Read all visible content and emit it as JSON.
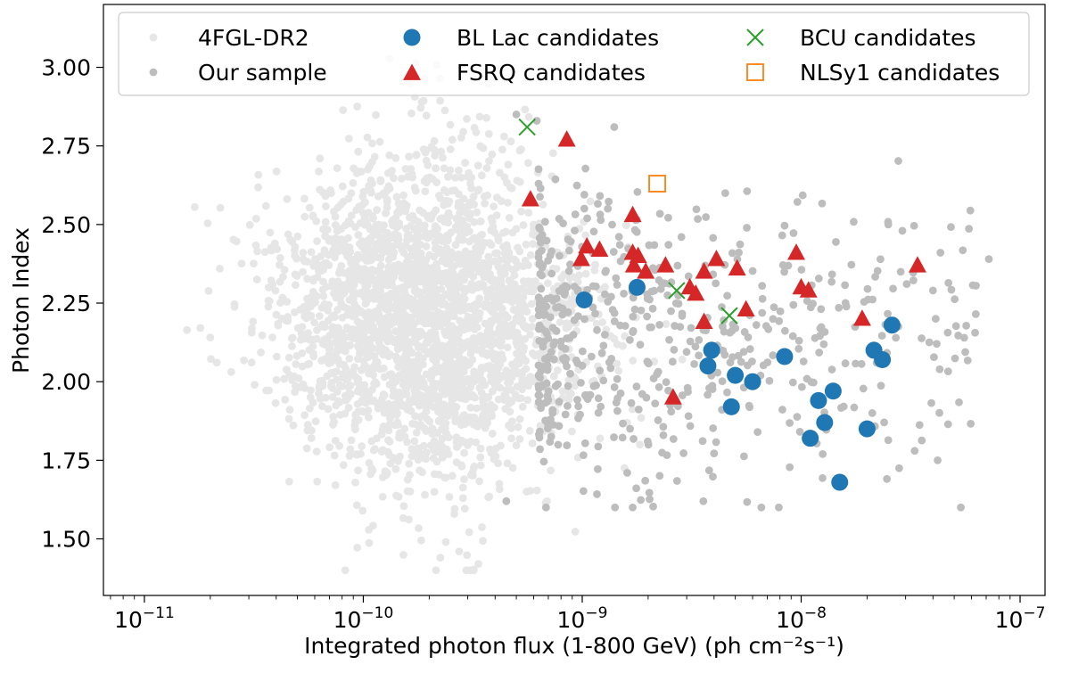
{
  "chart_data": {
    "type": "scatter",
    "xscale": "log",
    "xlabel": "Integrated photon flux (1-800 GeV) (ph cm⁻²s⁻¹)",
    "ylabel": "Photon Index",
    "xlim": [
      6.5e-12,
      1.3e-07
    ],
    "ylim": [
      1.32,
      3.2
    ],
    "x_ticks": [
      {
        "value": 1e-11,
        "base": "10",
        "exp": "−11"
      },
      {
        "value": 1e-10,
        "base": "10",
        "exp": "−10"
      },
      {
        "value": 1e-09,
        "base": "10",
        "exp": "−9"
      },
      {
        "value": 1e-08,
        "base": "10",
        "exp": "−8"
      },
      {
        "value": 1e-07,
        "base": "10",
        "exp": "−7"
      }
    ],
    "y_ticks": [
      {
        "value": 1.5,
        "label": "1.50"
      },
      {
        "value": 1.75,
        "label": "1.75"
      },
      {
        "value": 2.0,
        "label": "2.00"
      },
      {
        "value": 2.25,
        "label": "2.25"
      },
      {
        "value": 2.5,
        "label": "2.50"
      },
      {
        "value": 2.75,
        "label": "2.75"
      },
      {
        "value": 3.0,
        "label": "3.00"
      }
    ],
    "legend": {
      "position": "top",
      "columns": 3,
      "entries": [
        {
          "label": "4FGL-DR2",
          "marker": "dot",
          "color": "#e6e6e6"
        },
        {
          "label": "Our sample",
          "marker": "dot",
          "color": "#bdbdbd"
        },
        {
          "label": "BL Lac candidates",
          "marker": "circle",
          "color": "#1f77b4"
        },
        {
          "label": "FSRQ candidates",
          "marker": "triangle",
          "color": "#d62728"
        },
        {
          "label": "BCU candidates",
          "marker": "x",
          "color": "#2ca02c"
        },
        {
          "label": "NLSy1 candidates",
          "marker": "square",
          "color": "#ff7f0e"
        }
      ]
    },
    "series": [
      {
        "name": "4FGL-DR2",
        "marker": "dot",
        "color": "#e6e6e6",
        "distribution": {
          "count": 2600,
          "log_flux_mean": -9.72,
          "log_flux_sd": 0.34,
          "log_flux_min": -11.5,
          "log_flux_max": -7.7,
          "index_mean": 2.2,
          "index_sd": 0.28,
          "index_min": 1.4,
          "index_max": 3.15,
          "seed": 12345
        }
      },
      {
        "name": "Our sample",
        "marker": "dot",
        "color": "#bdbdbd",
        "distribution": {
          "count": 560,
          "log_flux_min": -9.2,
          "log_flux_max": -7.2,
          "index_mean": 2.15,
          "index_sd": 0.22,
          "index_min": 1.6,
          "index_max": 2.85,
          "seed": 777
        },
        "points": [
          {
            "x": 5e-10,
            "y": 2.85
          },
          {
            "x": 6.2e-10,
            "y": 2.83
          },
          {
            "x": 4.5e-09,
            "y": 2.6
          },
          {
            "x": 2.5e-08,
            "y": 2.5
          },
          {
            "x": 2.9e-08,
            "y": 2.48
          },
          {
            "x": 7.2e-08,
            "y": 2.39
          },
          {
            "x": 4e-08,
            "y": 2.29
          },
          {
            "x": 3.3e-08,
            "y": 1.78
          },
          {
            "x": 1.7e-09,
            "y": 1.6
          },
          {
            "x": 1.4e-09,
            "y": 2.81
          },
          {
            "x": 4.5e-10,
            "y": 1.62
          }
        ]
      },
      {
        "name": "BL Lac candidates",
        "marker": "circle",
        "color": "#1f77b4",
        "points": [
          {
            "x": 1.02e-09,
            "y": 2.26
          },
          {
            "x": 1.78e-09,
            "y": 2.3
          },
          {
            "x": 3.9e-09,
            "y": 2.1
          },
          {
            "x": 3.75e-09,
            "y": 2.05
          },
          {
            "x": 5e-09,
            "y": 2.02
          },
          {
            "x": 6e-09,
            "y": 2.0
          },
          {
            "x": 4.8e-09,
            "y": 1.92
          },
          {
            "x": 8.4e-09,
            "y": 2.08
          },
          {
            "x": 1.2e-08,
            "y": 1.94
          },
          {
            "x": 1.4e-08,
            "y": 1.97
          },
          {
            "x": 1.28e-08,
            "y": 1.87
          },
          {
            "x": 1.1e-08,
            "y": 1.82
          },
          {
            "x": 1.5e-08,
            "y": 1.68
          },
          {
            "x": 2e-08,
            "y": 1.85
          },
          {
            "x": 2.15e-08,
            "y": 2.1
          },
          {
            "x": 2.35e-08,
            "y": 2.07
          },
          {
            "x": 2.6e-08,
            "y": 2.18
          }
        ]
      },
      {
        "name": "FSRQ candidates",
        "marker": "triangle",
        "color": "#d62728",
        "points": [
          {
            "x": 8.5e-10,
            "y": 2.77
          },
          {
            "x": 5.8e-10,
            "y": 2.58
          },
          {
            "x": 1.7e-09,
            "y": 2.53
          },
          {
            "x": 1.05e-09,
            "y": 2.43
          },
          {
            "x": 1.2e-09,
            "y": 2.42
          },
          {
            "x": 9.9e-10,
            "y": 2.39
          },
          {
            "x": 1.7e-09,
            "y": 2.41
          },
          {
            "x": 1.8e-09,
            "y": 2.4
          },
          {
            "x": 1.72e-09,
            "y": 2.37
          },
          {
            "x": 1.95e-09,
            "y": 2.35
          },
          {
            "x": 2.4e-09,
            "y": 2.37
          },
          {
            "x": 3.1e-09,
            "y": 2.3
          },
          {
            "x": 3.3e-09,
            "y": 2.28
          },
          {
            "x": 3.6e-09,
            "y": 2.35
          },
          {
            "x": 4.1e-09,
            "y": 2.39
          },
          {
            "x": 5.1e-09,
            "y": 2.36
          },
          {
            "x": 5.6e-09,
            "y": 2.23
          },
          {
            "x": 3.6e-09,
            "y": 2.19
          },
          {
            "x": 2.6e-09,
            "y": 1.95
          },
          {
            "x": 9.5e-09,
            "y": 2.41
          },
          {
            "x": 1e-08,
            "y": 2.3
          },
          {
            "x": 1.08e-08,
            "y": 2.29
          },
          {
            "x": 1.9e-08,
            "y": 2.2
          },
          {
            "x": 3.4e-08,
            "y": 2.37
          }
        ]
      },
      {
        "name": "BCU candidates",
        "marker": "x",
        "color": "#2ca02c",
        "points": [
          {
            "x": 5.6e-10,
            "y": 2.81
          },
          {
            "x": 2.7e-09,
            "y": 2.29
          },
          {
            "x": 4.7e-09,
            "y": 2.21
          }
        ]
      },
      {
        "name": "NLSy1 candidates",
        "marker": "square",
        "color": "#ff7f0e",
        "points": [
          {
            "x": 2.2e-09,
            "y": 2.63
          }
        ]
      }
    ]
  }
}
